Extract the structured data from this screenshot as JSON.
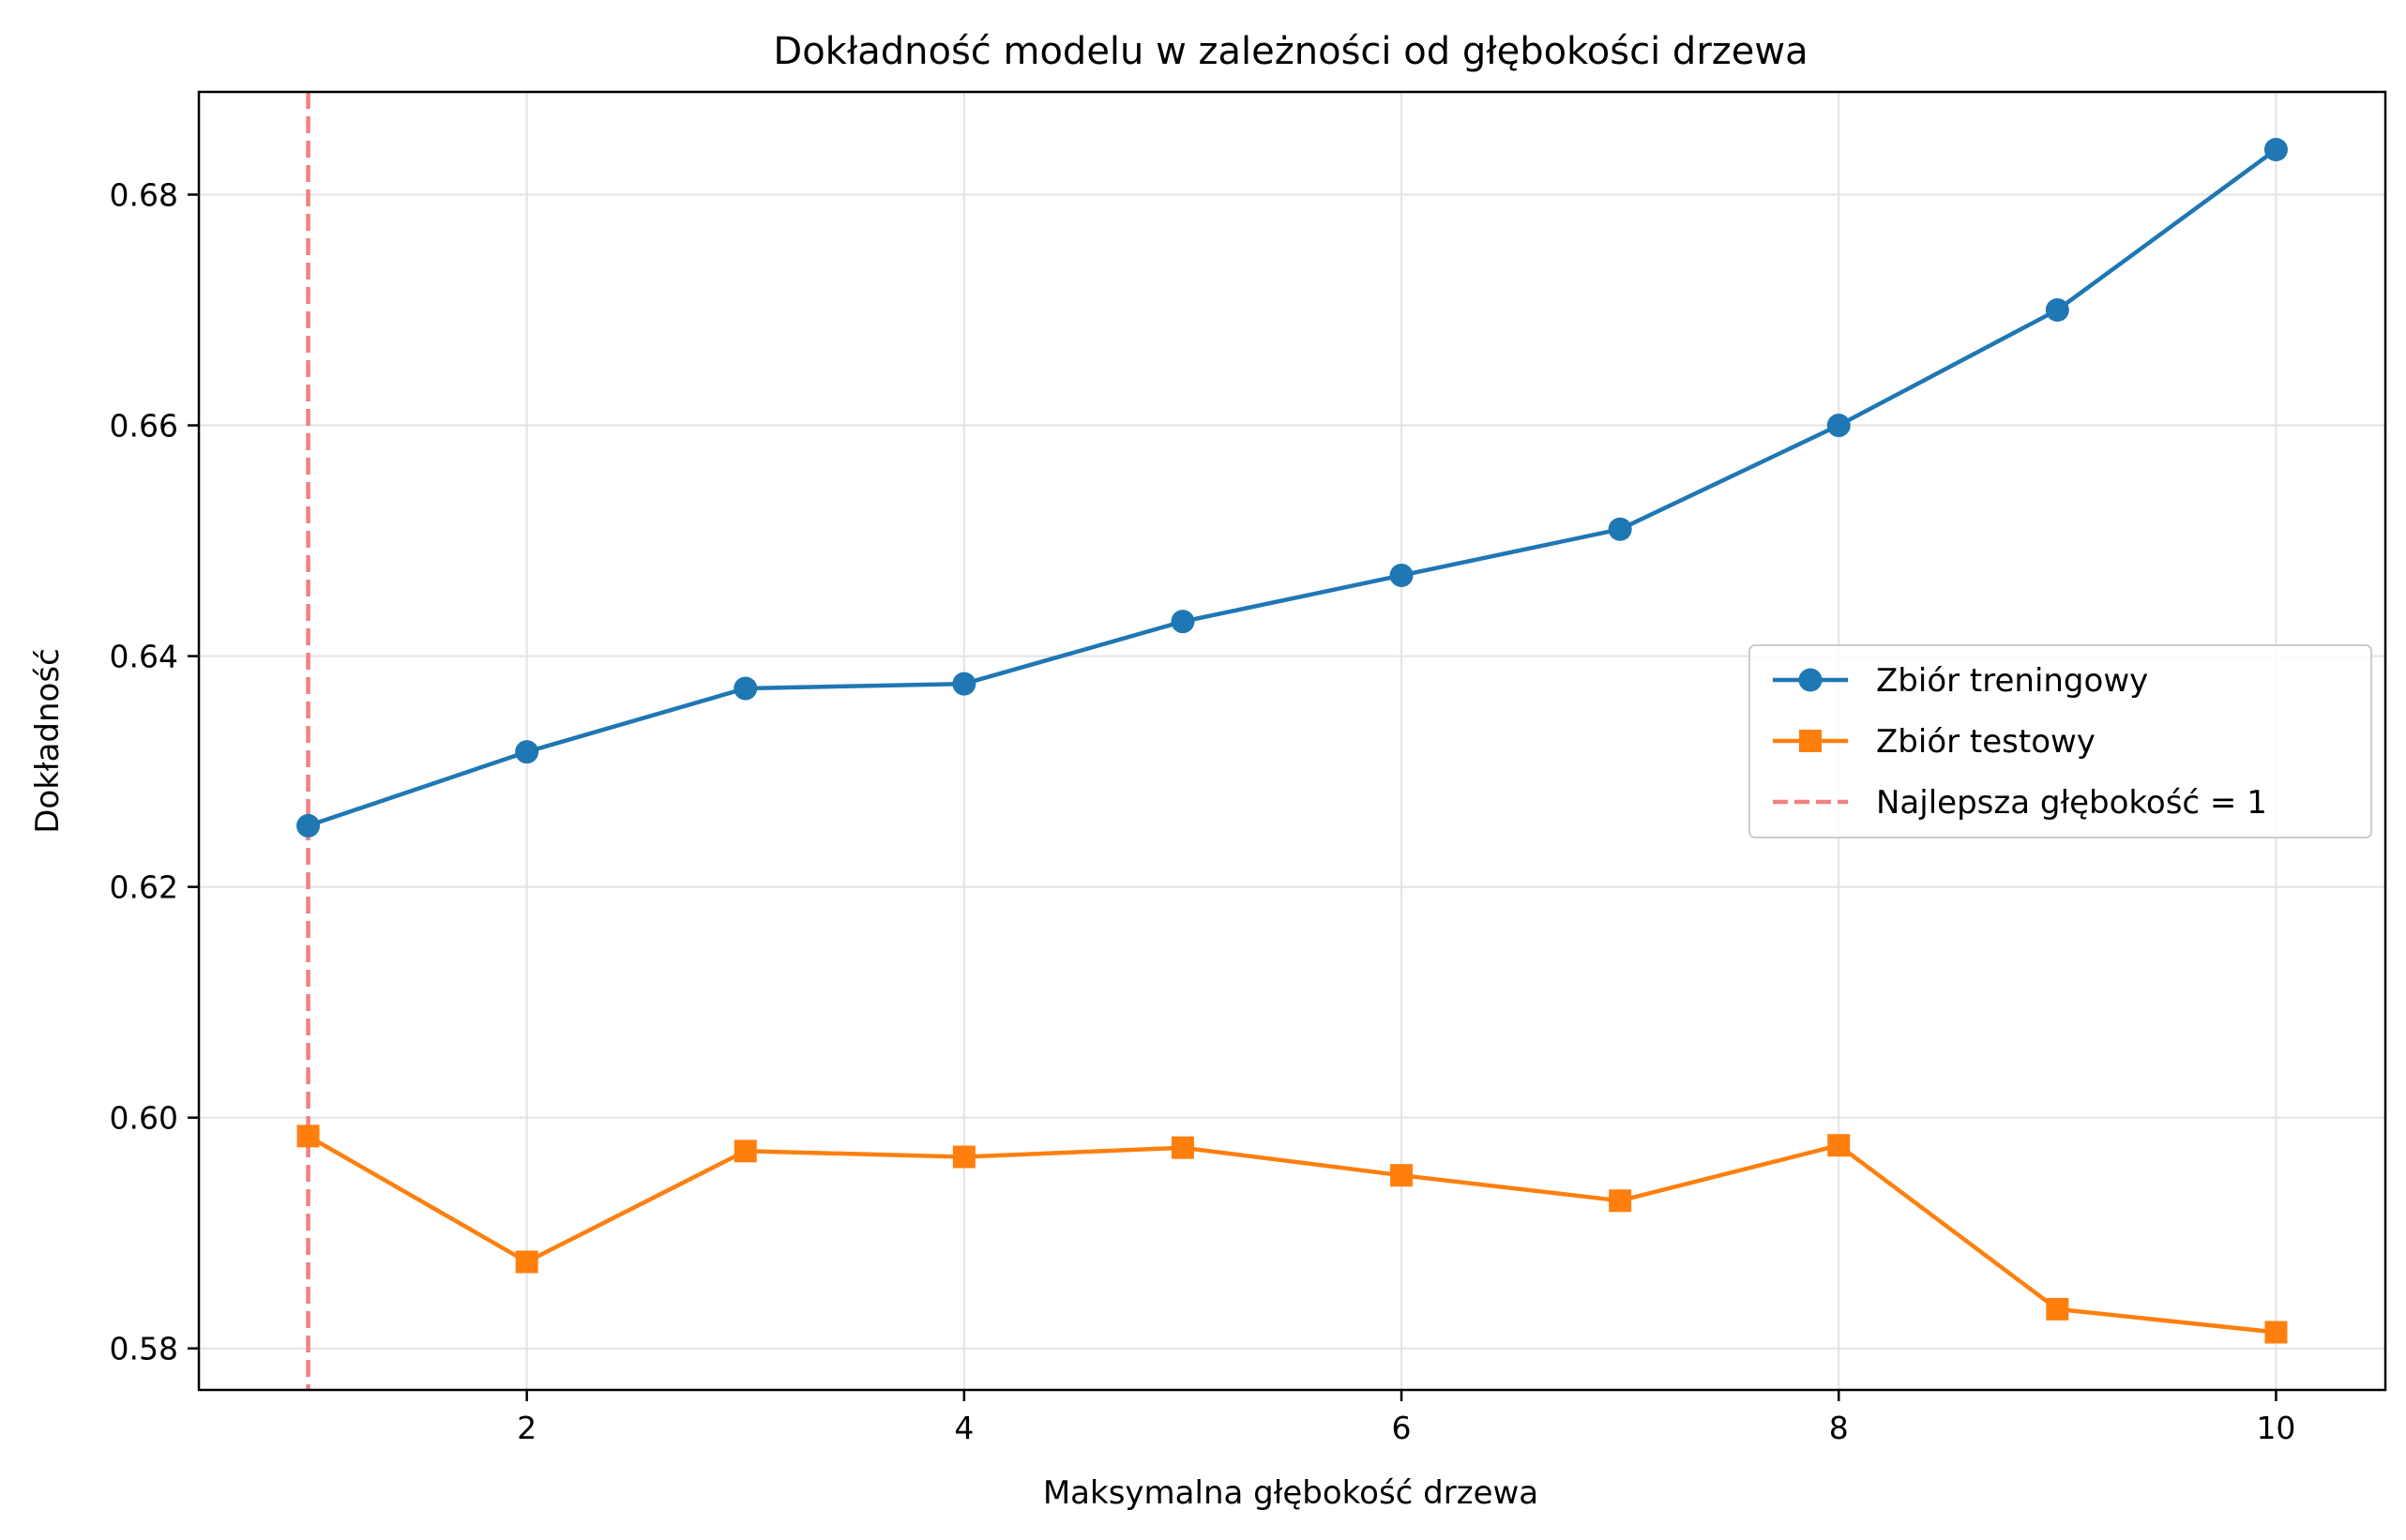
{
  "chart_data": {
    "type": "line",
    "title": "Dokładność modelu w zależności od głębokości drzewa",
    "xlabel": "Maksymalna głębokość drzewa",
    "ylabel": "Dokładność",
    "xlim": [
      0.5,
      10.5
    ],
    "ylim": [
      0.5764,
      0.6889
    ],
    "x_ticks": [
      2,
      4,
      6,
      8,
      10
    ],
    "x_tick_labels": [
      "2",
      "4",
      "6",
      "8",
      "10"
    ],
    "y_ticks": [
      0.58,
      0.6,
      0.62,
      0.64,
      0.66,
      0.68
    ],
    "y_tick_labels": [
      "0.58",
      "0.60",
      "0.62",
      "0.64",
      "0.66",
      "0.68"
    ],
    "grid": true,
    "legend_position": "center-right",
    "x": [
      1,
      2,
      3,
      4,
      5,
      6,
      7,
      8,
      9,
      10
    ],
    "series": [
      {
        "name": "Zbiór treningowy",
        "color": "#1f77b4",
        "marker": "circle",
        "values": [
          0.6253,
          0.6317,
          0.6372,
          0.6376,
          0.643,
          0.647,
          0.651,
          0.66,
          0.67,
          0.6839
        ]
      },
      {
        "name": "Zbiór testowy",
        "color": "#ff7f0e",
        "marker": "square",
        "values": [
          0.5984,
          0.5875,
          0.5971,
          0.5966,
          0.5974,
          0.595,
          0.5928,
          0.5976,
          0.5834,
          0.5814
        ]
      }
    ],
    "reference_lines": [
      {
        "name": "Najlepsza głębokość = 1",
        "orientation": "vertical",
        "x": 1,
        "color": "#f08080",
        "style": "dashed"
      }
    ]
  }
}
